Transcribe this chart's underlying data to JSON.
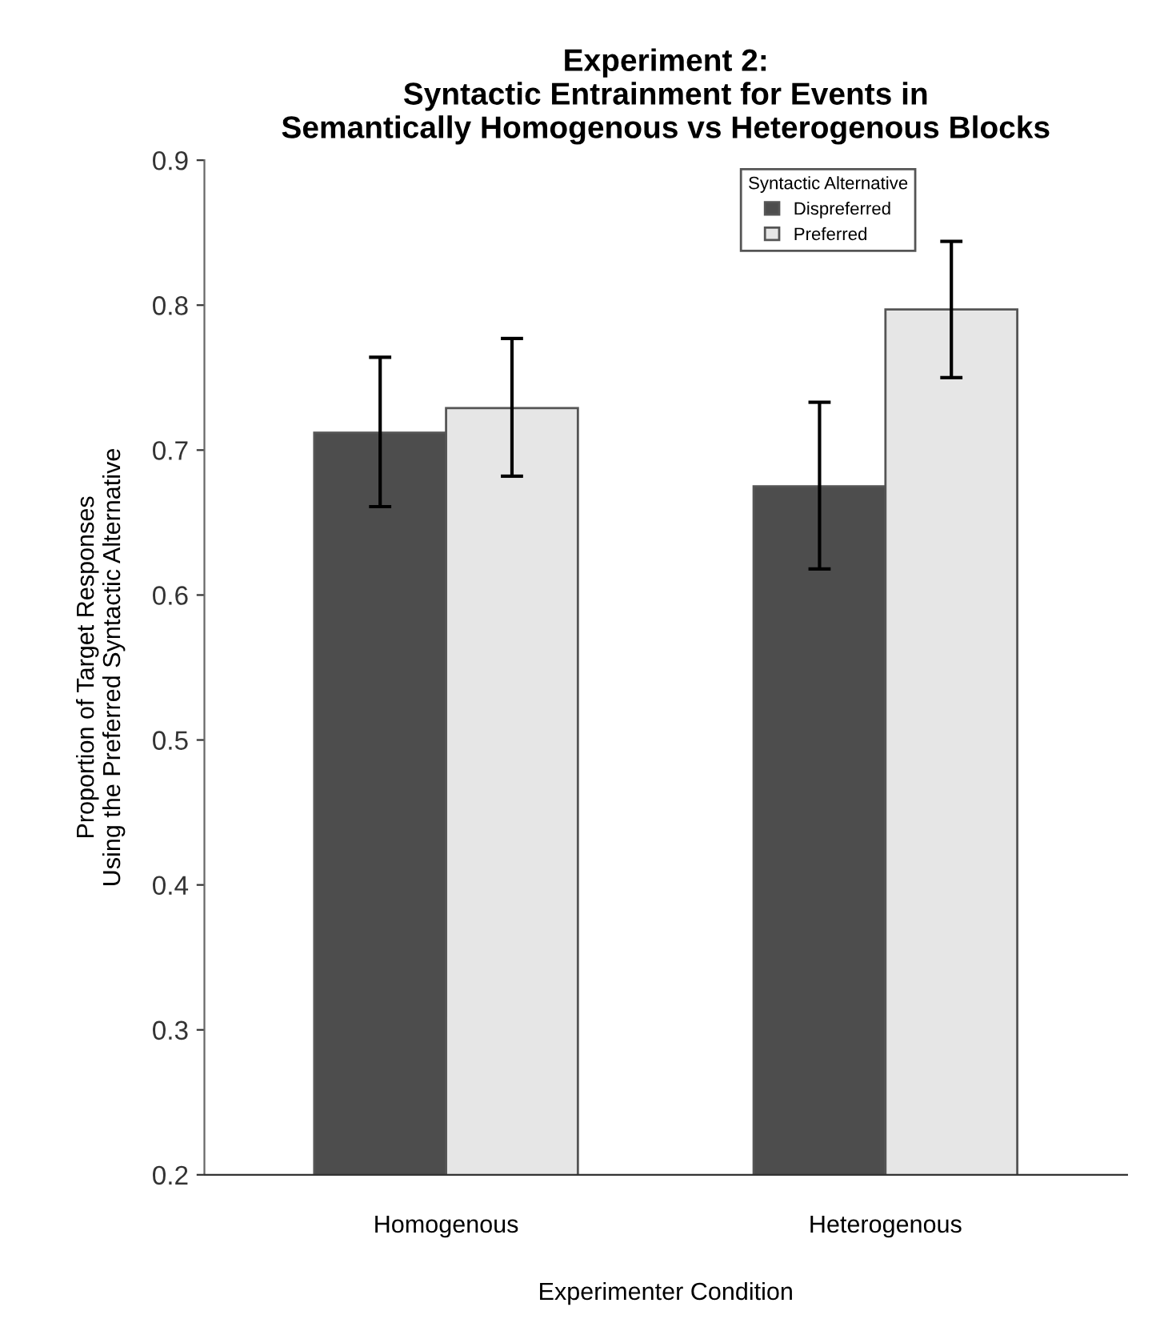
{
  "chart_data": {
    "type": "bar",
    "title": "Experiment 2:\nSyntactic Entrainment for Events in\nSemantically Homogenous vs Heterogenous Blocks",
    "xlabel": "Experimenter Condition",
    "ylabel": "Proportion of Target Responses\nUsing the Preferred Syntactic Alternative",
    "legend_title": "Syntactic Alternative",
    "categories": [
      "Homogenous",
      "Heterogenous"
    ],
    "series": [
      {
        "name": "Dispreferred",
        "color": "#4d4d4d",
        "values": [
          0.712,
          0.675
        ],
        "errors": [
          [
            0.661,
            0.764
          ],
          [
            0.618,
            0.733
          ]
        ]
      },
      {
        "name": "Preferred",
        "color": "#e6e6e6",
        "values": [
          0.729,
          0.797
        ],
        "errors": [
          [
            0.682,
            0.777
          ],
          [
            0.75,
            0.844
          ]
        ]
      }
    ],
    "ylim": [
      0.2,
      0.9
    ],
    "yticks": [
      0.2,
      0.3,
      0.4,
      0.5,
      0.6,
      0.7,
      0.8,
      0.9
    ],
    "grid": false,
    "legend": "top right"
  }
}
